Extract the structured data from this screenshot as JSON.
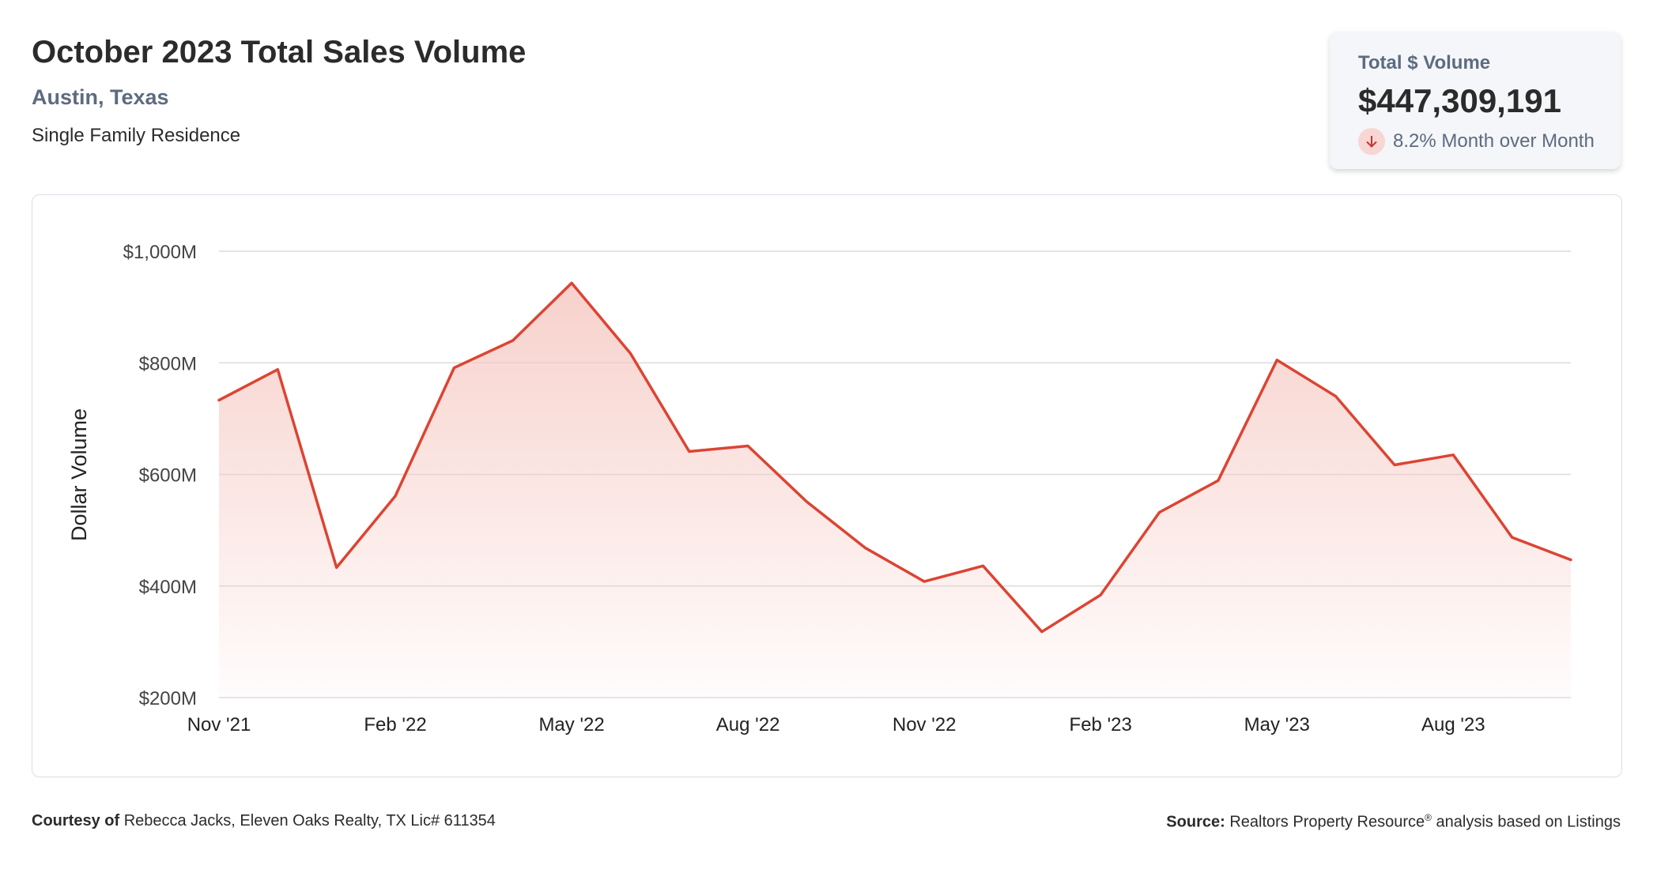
{
  "header": {
    "title": "October 2023 Total Sales Volume",
    "location": "Austin, Texas",
    "property_type": "Single Family Residence"
  },
  "kpi": {
    "label": "Total $ Volume",
    "value": "$447,309,191",
    "change": "8.2% Month over Month",
    "direction": "down",
    "icon": "down-arrow-icon"
  },
  "colors": {
    "line": "#dc4432",
    "fill_top": "#f6c9c3",
    "grid": "#dcdcdc",
    "subtitle": "#5d6b80"
  },
  "chart_data": {
    "type": "area",
    "title": "",
    "xlabel": "",
    "ylabel": "Dollar Volume",
    "ylim": [
      200,
      1000
    ],
    "y_ticks": [
      200,
      400,
      600,
      800,
      1000
    ],
    "y_tick_labels": [
      "$200M",
      "$400M",
      "$600M",
      "$800M",
      "$1,000M"
    ],
    "y_unit": "$M",
    "grid": true,
    "x": [
      "Nov '21",
      "Dec '21",
      "Jan '22",
      "Feb '22",
      "Mar '22",
      "Apr '22",
      "May '22",
      "Jun '22",
      "Jul '22",
      "Aug '22",
      "Sep '22",
      "Oct '22",
      "Nov '22",
      "Dec '22",
      "Jan '23",
      "Feb '23",
      "Mar '23",
      "Apr '23",
      "May '23",
      "Jun '23",
      "Jul '23",
      "Aug '23",
      "Sep '23",
      "Oct '23"
    ],
    "x_tick_labels": [
      "Nov '21",
      "Feb '22",
      "May '22",
      "Aug '22",
      "Nov '22",
      "Feb '23",
      "May '23",
      "Aug '23"
    ],
    "series": [
      {
        "values": [
          733,
          788,
          433,
          561,
          791,
          840,
          943,
          817,
          641,
          651,
          551,
          468,
          408,
          436,
          318,
          384,
          532,
          589,
          805,
          740,
          617,
          635,
          487,
          447
        ]
      }
    ]
  },
  "footer": {
    "courtesy_label": "Courtesy of",
    "courtesy_text": "Rebecca Jacks, Eleven Oaks Realty, TX Lic# 611354",
    "source_label": "Source:",
    "source_text": "Realtors Property Resource",
    "source_mark": "®",
    "source_suffix": "analysis based on Listings"
  }
}
